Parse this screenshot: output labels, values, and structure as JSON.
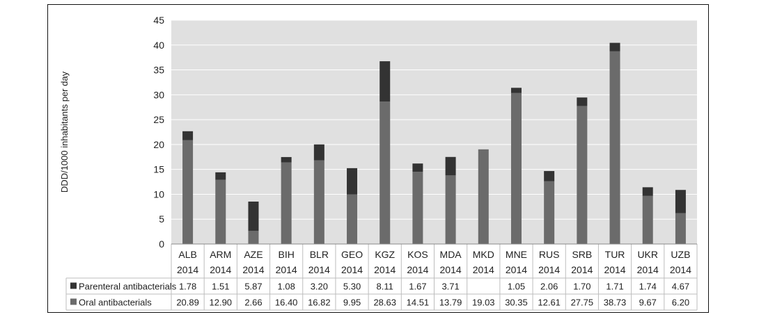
{
  "chart_data": {
    "type": "bar",
    "stacked": true,
    "ylabel": "DDD/1000 inhabitants per day",
    "ylim": [
      0,
      45
    ],
    "yticks": [
      0,
      5,
      10,
      15,
      20,
      25,
      30,
      35,
      40,
      45
    ],
    "grid": true,
    "categories": [
      "ALB",
      "ARM",
      "AZE",
      "BIH",
      "BLR",
      "GEO",
      "KGZ",
      "KOS",
      "MDA",
      "MKD",
      "MNE",
      "RUS",
      "SRB",
      "TUR",
      "UKR",
      "UZB"
    ],
    "years": [
      "2014",
      "2014",
      "2014",
      "2014",
      "2014",
      "2014",
      "2014",
      "2014",
      "2014",
      "2014",
      "2014",
      "2014",
      "2014",
      "2014",
      "2014",
      "2014"
    ],
    "series": [
      {
        "name": "Parenteral antibacterials",
        "color": "#333333",
        "values": [
          1.78,
          1.51,
          5.87,
          1.08,
          3.2,
          5.3,
          8.11,
          1.67,
          3.71,
          null,
          1.05,
          2.06,
          1.7,
          1.71,
          1.74,
          4.67
        ],
        "labels": [
          "1.78",
          "1.51",
          "5.87",
          "1.08",
          "3.20",
          "5.30",
          "8.11",
          "1.67",
          "3.71",
          "",
          "1.05",
          "2.06",
          "1.70",
          "1.71",
          "1.74",
          "4.67"
        ]
      },
      {
        "name": "Oral antibacterials",
        "color": "#6b6b6b",
        "values": [
          20.89,
          12.9,
          2.66,
          16.4,
          16.82,
          9.95,
          28.63,
          14.51,
          13.79,
          19.03,
          30.35,
          12.61,
          27.75,
          38.73,
          9.67,
          6.2
        ],
        "labels": [
          "20.89",
          "12.90",
          "2.66",
          "16.40",
          "16.82",
          "9.95",
          "28.63",
          "14.51",
          "13.79",
          "19.03",
          "30.35",
          "12.61",
          "27.75",
          "38.73",
          "9.67",
          "6.20"
        ]
      }
    ],
    "colors": {
      "plot_background": "#e0e0e0",
      "gridline": "#ffffff"
    }
  }
}
